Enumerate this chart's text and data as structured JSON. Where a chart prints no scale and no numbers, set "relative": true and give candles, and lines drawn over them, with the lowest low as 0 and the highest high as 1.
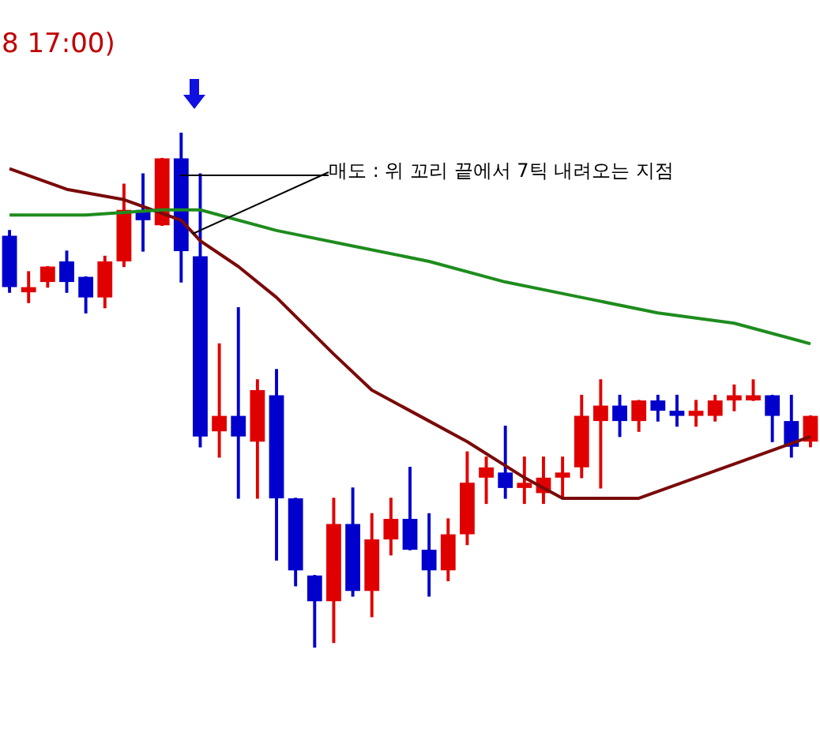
{
  "chart_data": {
    "type": "candlestick",
    "title": "8 17:00)",
    "relative": true,
    "legend": false,
    "categories": [
      null,
      null,
      null,
      null,
      null,
      null,
      null,
      null,
      null,
      null,
      null,
      null,
      null,
      null,
      null,
      null,
      null,
      null,
      null,
      null,
      null,
      null,
      null,
      null,
      null,
      null,
      null,
      null,
      null,
      null,
      null,
      null,
      null,
      null,
      null,
      null,
      null,
      null,
      null,
      null,
      null,
      null,
      null
    ],
    "ohlc": [
      [
        0.8,
        0.81,
        0.69,
        0.7
      ],
      [
        0.69,
        0.73,
        0.67,
        0.7
      ],
      [
        0.71,
        0.74,
        0.7,
        0.74
      ],
      [
        0.75,
        0.77,
        0.69,
        0.71
      ],
      [
        0.72,
        0.72,
        0.65,
        0.68
      ],
      [
        0.68,
        0.76,
        0.66,
        0.75
      ],
      [
        0.75,
        0.9,
        0.74,
        0.85
      ],
      [
        0.85,
        0.92,
        0.77,
        0.83
      ],
      [
        0.82,
        0.95,
        0.82,
        0.95
      ],
      [
        0.95,
        1.0,
        0.71,
        0.77
      ],
      [
        0.76,
        0.92,
        0.39,
        0.41
      ],
      [
        0.42,
        0.59,
        0.37,
        0.45
      ],
      [
        0.45,
        0.66,
        0.29,
        0.41
      ],
      [
        0.4,
        0.52,
        0.29,
        0.5
      ],
      [
        0.49,
        0.54,
        0.17,
        0.29
      ],
      [
        0.29,
        0.29,
        0.12,
        0.15
      ],
      [
        0.14,
        0.14,
        0.0,
        0.09
      ],
      [
        0.09,
        0.29,
        0.01,
        0.24
      ],
      [
        0.24,
        0.31,
        0.1,
        0.11
      ],
      [
        0.11,
        0.26,
        0.06,
        0.21
      ],
      [
        0.21,
        0.29,
        0.18,
        0.25
      ],
      [
        0.25,
        0.35,
        0.19,
        0.19
      ],
      [
        0.19,
        0.26,
        0.1,
        0.15
      ],
      [
        0.15,
        0.25,
        0.13,
        0.22
      ],
      [
        0.22,
        0.38,
        0.2,
        0.32
      ],
      [
        0.33,
        0.37,
        0.28,
        0.35
      ],
      [
        0.34,
        0.43,
        0.29,
        0.31
      ],
      [
        0.31,
        0.37,
        0.28,
        0.32
      ],
      [
        0.3,
        0.37,
        0.28,
        0.33
      ],
      [
        0.33,
        0.37,
        0.29,
        0.34
      ],
      [
        0.35,
        0.49,
        0.33,
        0.45
      ],
      [
        0.44,
        0.52,
        0.31,
        0.47
      ],
      [
        0.47,
        0.49,
        0.41,
        0.44
      ],
      [
        0.44,
        0.48,
        0.42,
        0.48
      ],
      [
        0.48,
        0.49,
        0.44,
        0.46
      ],
      [
        0.46,
        0.49,
        0.43,
        0.45
      ],
      [
        0.45,
        0.48,
        0.43,
        0.46
      ],
      [
        0.45,
        0.49,
        0.44,
        0.48
      ],
      [
        0.48,
        0.51,
        0.46,
        0.49
      ],
      [
        0.48,
        0.52,
        0.48,
        0.49
      ],
      [
        0.49,
        0.49,
        0.4,
        0.45
      ],
      [
        0.44,
        0.49,
        0.37,
        0.39
      ],
      [
        0.4,
        0.45,
        0.39,
        0.45
      ]
    ],
    "colors": [
      "#0000cc",
      "#e00000",
      "#e00000",
      "#0000cc",
      "#0000cc",
      "#e00000",
      "#e00000",
      "#0000cc",
      "#e00000",
      "#0000cc",
      "#0000cc",
      "#e00000",
      "#0000cc",
      "#e00000",
      "#0000cc",
      "#0000cc",
      "#0000cc",
      "#e00000",
      "#0000cc",
      "#e00000",
      "#e00000",
      "#0000cc",
      "#0000cc",
      "#e00000",
      "#e00000",
      "#e00000",
      "#0000cc",
      "#e00000",
      "#e00000",
      "#e00000",
      "#e00000",
      "#e00000",
      "#0000cc",
      "#e00000",
      "#0000cc",
      "#0000cc",
      "#e00000",
      "#e00000",
      "#e00000",
      "#e00000",
      "#0000cc",
      "#0000cc",
      "#e00000"
    ],
    "series": [
      {
        "type": "line",
        "color": "#1e8c1e",
        "values": [
          0.84,
          null,
          null,
          null,
          0.84,
          null,
          null,
          null,
          0.85,
          null,
          0.85,
          null,
          null,
          null,
          0.81,
          null,
          null,
          null,
          0.78,
          null,
          null,
          null,
          0.75,
          null,
          null,
          null,
          0.71,
          null,
          null,
          null,
          0.68,
          null,
          null,
          null,
          0.65,
          null,
          null,
          null,
          0.63,
          null,
          null,
          null,
          0.59
        ]
      },
      {
        "type": "line",
        "color": "#7a0a0a",
        "values": [
          0.93,
          null,
          null,
          0.89,
          null,
          null,
          0.87,
          null,
          null,
          0.83,
          0.79,
          null,
          0.74,
          null,
          0.68,
          null,
          null,
          0.57,
          null,
          0.5,
          null,
          null,
          0.44,
          null,
          0.4,
          null,
          null,
          0.33,
          null,
          0.29,
          null,
          null,
          null,
          0.29,
          null,
          null,
          0.33,
          null,
          null,
          0.37,
          null,
          null,
          0.41
        ]
      }
    ],
    "annotations": [
      "매도 : 위 꼬리 끝에서 7틱 내려오는 지점"
    ]
  }
}
